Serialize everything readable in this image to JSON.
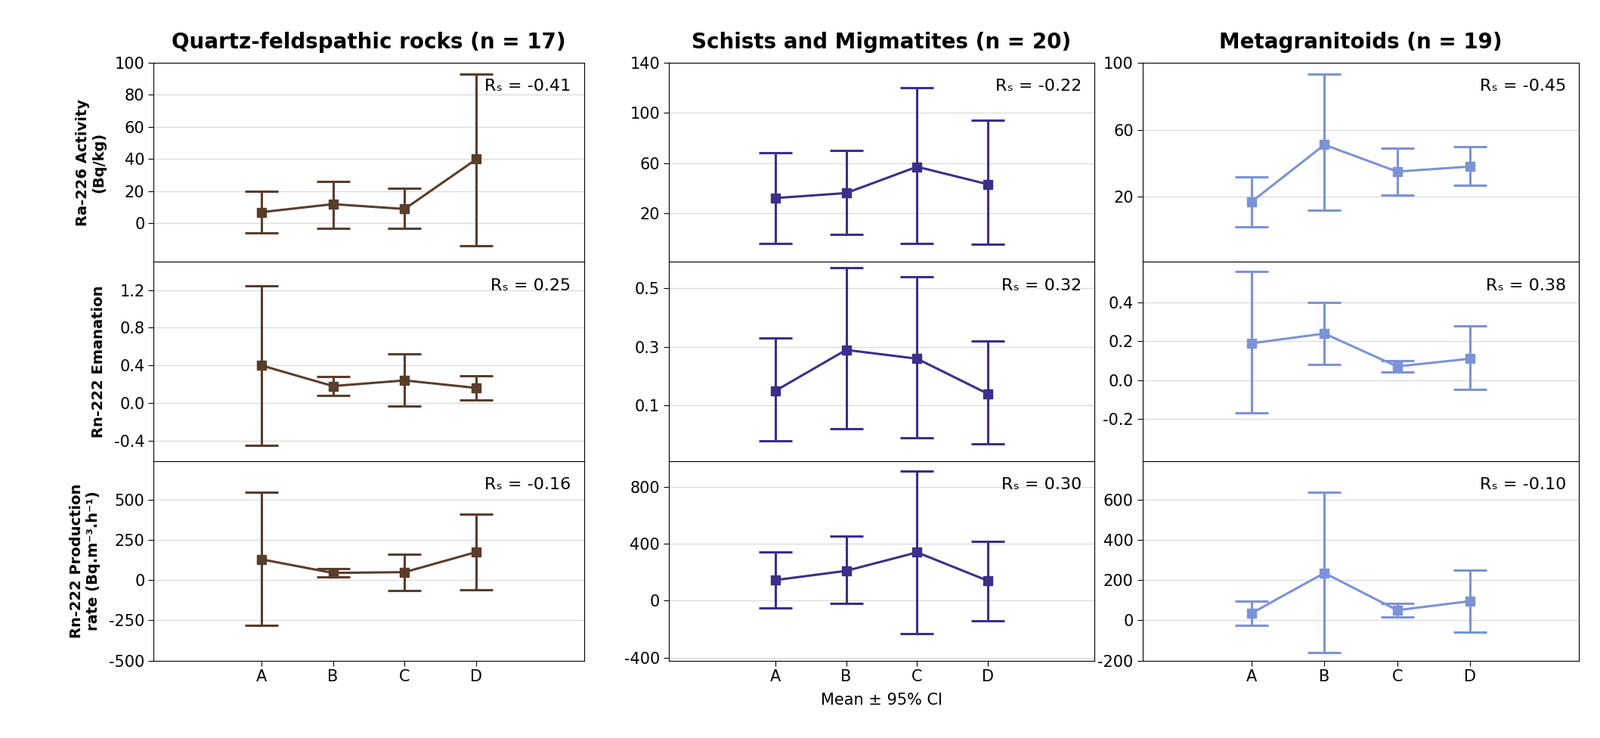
{
  "chart_data": [
    {
      "type": "line",
      "title": "Quartz-feldspathic rocks (n = 17)",
      "ylabel": "Ra-226 Activity (Bq/kg)",
      "categories": [
        "A",
        "B",
        "C",
        "D"
      ],
      "values": [
        7,
        12,
        9,
        40
      ],
      "ci_lower": [
        -6,
        -3,
        -3,
        -14
      ],
      "ci_upper": [
        20,
        26,
        22,
        93
      ],
      "color": "#5a3d2b",
      "marker": "square",
      "ylim": [
        -24,
        100
      ],
      "yticks": [
        0,
        20,
        40,
        60,
        80,
        100
      ],
      "grid": true,
      "annotation": "Rₛ = -0.41",
      "tick_labels": "y"
    },
    {
      "type": "line",
      "title": "Schists and Migmatites (n = 20)",
      "categories": [
        "A",
        "B",
        "C",
        "D"
      ],
      "values": [
        32,
        36,
        57,
        43
      ],
      "ci_lower": [
        -4,
        3,
        -4,
        -5
      ],
      "ci_upper": [
        68,
        70,
        120,
        94
      ],
      "color": "#3a2f8a",
      "marker": "square",
      "ylim": [
        -19,
        140
      ],
      "yticks": [
        20,
        60,
        100,
        140
      ],
      "grid": true,
      "annotation": "Rₛ = -0.22",
      "tick_labels": "y"
    },
    {
      "type": "line",
      "title": "Metagranitoids (n = 19)",
      "categories": [
        "A",
        "B",
        "C",
        "D"
      ],
      "values": [
        17,
        51,
        35,
        38
      ],
      "ci_lower": [
        2,
        12,
        21,
        27
      ],
      "ci_upper": [
        32,
        93,
        49,
        50
      ],
      "color": "#7b93d6",
      "marker": "square",
      "ylim": [
        -19,
        100
      ],
      "yticks": [
        20,
        60,
        100
      ],
      "grid": true,
      "annotation": "Rₛ = -0.45",
      "tick_labels": "y"
    },
    {
      "type": "line",
      "ylabel": "Rn-222 Emanation",
      "categories": [
        "A",
        "B",
        "C",
        "D"
      ],
      "values": [
        0.4,
        0.18,
        0.24,
        0.16
      ],
      "ci_lower": [
        -0.45,
        0.08,
        -0.03,
        0.03
      ],
      "ci_upper": [
        1.25,
        0.28,
        0.52,
        0.29
      ],
      "color": "#5a3d2b",
      "marker": "square",
      "ylim": [
        -0.62,
        1.5
      ],
      "yticks": [
        -0.4,
        {
          "value": 0,
          "label": "0.0"
        },
        0.4,
        0.8,
        1.2
      ],
      "grid": true,
      "annotation": "Rₛ = 0.25",
      "tick_labels": "y"
    },
    {
      "type": "line",
      "categories": [
        "A",
        "B",
        "C",
        "D"
      ],
      "values": [
        0.15,
        0.29,
        0.26,
        0.14
      ],
      "ci_lower": [
        -0.02,
        0.02,
        -0.01,
        -0.03
      ],
      "ci_upper": [
        0.33,
        0.57,
        0.54,
        0.32
      ],
      "color": "#3a2f8a",
      "marker": "square",
      "ylim": [
        -0.09,
        0.59
      ],
      "yticks": [
        0.1,
        0.3,
        0.5
      ],
      "grid": true,
      "annotation": "Rₛ = 0.32",
      "tick_labels": "y"
    },
    {
      "type": "line",
      "categories": [
        "A",
        "B",
        "C",
        "D"
      ],
      "values": [
        0.19,
        0.24,
        0.07,
        0.11
      ],
      "ci_lower": [
        -0.17,
        0.08,
        0.04,
        -0.05
      ],
      "ci_upper": [
        0.56,
        0.4,
        0.1,
        0.28
      ],
      "color": "#7b93d6",
      "marker": "square",
      "ylim": [
        -0.42,
        0.61
      ],
      "yticks": [
        -0.2,
        {
          "value": 0,
          "label": "0.0"
        },
        0.2,
        0.4
      ],
      "grid": true,
      "annotation": "Rₛ = 0.38",
      "tick_labels": "y"
    },
    {
      "type": "line",
      "ylabel": "Rn-222 Production rate (Bq.m⁻³.h⁻¹)",
      "categories": [
        "A",
        "B",
        "C",
        "D"
      ],
      "values": [
        130,
        45,
        50,
        175
      ],
      "ci_lower": [
        -280,
        20,
        -65,
        -60
      ],
      "ci_upper": [
        545,
        70,
        160,
        410
      ],
      "color": "#5a3d2b",
      "marker": "square",
      "ylim": [
        -500,
        740
      ],
      "yticks": [
        -500,
        -250,
        0,
        250,
        500
      ],
      "grid": true,
      "annotation": "Rₛ = -0.16"
    },
    {
      "type": "line",
      "xlabel": "Mean ± 95% CI",
      "categories": [
        "A",
        "B",
        "C",
        "D"
      ],
      "values": [
        145,
        210,
        340,
        140
      ],
      "ci_lower": [
        -50,
        -20,
        -230,
        -140
      ],
      "ci_upper": [
        340,
        455,
        910,
        415
      ],
      "color": "#3a2f8a",
      "marker": "square",
      "ylim": [
        -420,
        980
      ],
      "yticks": [
        -400,
        0,
        400,
        800
      ],
      "grid": true,
      "annotation": "Rₛ = 0.30"
    },
    {
      "type": "line",
      "categories": [
        "A",
        "B",
        "C",
        "D"
      ],
      "values": [
        35,
        235,
        50,
        95
      ],
      "ci_lower": [
        -25,
        -160,
        15,
        -60
      ],
      "ci_upper": [
        95,
        635,
        85,
        250
      ],
      "color": "#7b93d6",
      "marker": "square",
      "ylim": [
        -200,
        790
      ],
      "yticks": [
        -200,
        0,
        200,
        400,
        600
      ],
      "grid": true,
      "annotation": "Rₛ = -0.10"
    }
  ]
}
